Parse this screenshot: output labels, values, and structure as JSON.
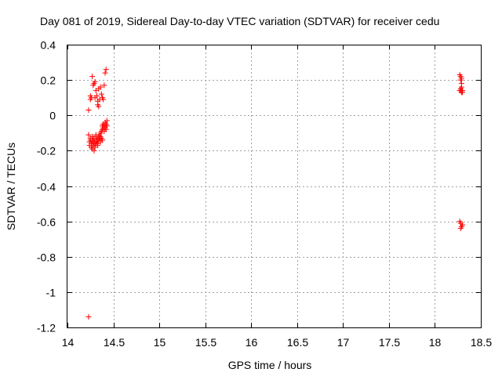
{
  "chart_data": {
    "type": "scatter",
    "title": "Day 081 of 2019, Sidereal Day-to-day VTEC variation (SDTVAR) for receiver cedu",
    "xlabel": "GPS time / hours",
    "ylabel": "SDTVAR / TECUs",
    "xlim": [
      14,
      18.5
    ],
    "ylim": [
      -1.2,
      0.4
    ],
    "x_ticks": [
      14,
      14.5,
      15,
      15.5,
      16,
      16.5,
      17,
      17.5,
      18,
      18.5
    ],
    "x_tick_labels": [
      "14",
      "14.5",
      "15",
      "15.5",
      "16",
      "16.5",
      "17",
      "17.5",
      "18",
      "18.5"
    ],
    "y_ticks": [
      0.4,
      0.2,
      0,
      -0.2,
      -0.4,
      -0.6,
      -0.8,
      -1,
      -1.2
    ],
    "y_tick_labels": [
      "0.4",
      "0.2",
      "0",
      "-0.2",
      "-0.4",
      "-0.6",
      "-0.8",
      "-1",
      "-1.2"
    ],
    "grid": true,
    "marker": "plus",
    "marker_color": "#ff0000",
    "series": [
      {
        "name": "SDTVAR",
        "points": [
          [
            14.23,
            -1.14
          ],
          [
            14.23,
            0.03
          ],
          [
            14.25,
            0.09
          ],
          [
            14.25,
            0.11
          ],
          [
            14.26,
            0.1
          ],
          [
            14.27,
            0.22
          ],
          [
            14.28,
            0.17
          ],
          [
            14.29,
            0.18
          ],
          [
            14.3,
            0.19
          ],
          [
            14.31,
            0.14
          ],
          [
            14.32,
            0.11
          ],
          [
            14.33,
            0.08
          ],
          [
            14.33,
            0.06
          ],
          [
            14.34,
            0.05
          ],
          [
            14.35,
            0.09
          ],
          [
            14.36,
            0.16
          ],
          [
            14.37,
            0.12
          ],
          [
            14.38,
            0.1
          ],
          [
            14.39,
            0.09
          ],
          [
            14.4,
            0.17
          ],
          [
            14.41,
            0.24
          ],
          [
            14.42,
            0.26
          ],
          [
            14.34,
            0.15
          ],
          [
            14.3,
            0.1
          ],
          [
            14.23,
            -0.11
          ],
          [
            14.24,
            -0.15
          ],
          [
            14.24,
            -0.17
          ],
          [
            14.25,
            -0.13
          ],
          [
            14.26,
            -0.16
          ],
          [
            14.26,
            -0.18
          ],
          [
            14.27,
            -0.12
          ],
          [
            14.27,
            -0.19
          ],
          [
            14.28,
            -0.14
          ],
          [
            14.28,
            -0.17
          ],
          [
            14.29,
            -0.13
          ],
          [
            14.29,
            -0.16
          ],
          [
            14.3,
            -0.15
          ],
          [
            14.3,
            -0.18
          ],
          [
            14.31,
            -0.12
          ],
          [
            14.31,
            -0.16
          ],
          [
            14.32,
            -0.14
          ],
          [
            14.32,
            -0.15
          ],
          [
            14.33,
            -0.13
          ],
          [
            14.33,
            -0.17
          ],
          [
            14.34,
            -0.12
          ],
          [
            14.34,
            -0.14
          ],
          [
            14.35,
            -0.11
          ],
          [
            14.35,
            -0.13
          ],
          [
            14.36,
            -0.1
          ],
          [
            14.36,
            -0.12
          ],
          [
            14.37,
            -0.09
          ],
          [
            14.37,
            -0.13
          ],
          [
            14.38,
            -0.06
          ],
          [
            14.38,
            -0.08
          ],
          [
            14.39,
            -0.05
          ],
          [
            14.39,
            -0.07
          ],
          [
            14.4,
            -0.06
          ],
          [
            14.4,
            -0.09
          ],
          [
            14.41,
            -0.04
          ],
          [
            14.41,
            -0.07
          ],
          [
            14.42,
            -0.05
          ],
          [
            14.42,
            -0.08
          ],
          [
            14.43,
            -0.03
          ],
          [
            14.43,
            -0.06
          ],
          [
            14.38,
            -0.14
          ],
          [
            14.36,
            -0.15
          ],
          [
            14.33,
            -0.16
          ],
          [
            14.29,
            -0.2
          ],
          [
            14.27,
            -0.15
          ],
          [
            14.25,
            -0.14
          ],
          [
            14.31,
            -0.11
          ],
          [
            18.27,
            0.23
          ],
          [
            18.28,
            0.22
          ],
          [
            18.28,
            0.2
          ],
          [
            18.29,
            0.21
          ],
          [
            18.29,
            0.18
          ],
          [
            18.28,
            0.15
          ],
          [
            18.28,
            0.14
          ],
          [
            18.29,
            0.13
          ],
          [
            18.3,
            0.14
          ],
          [
            18.3,
            0.13
          ],
          [
            18.27,
            0.14
          ],
          [
            18.29,
            0.16
          ],
          [
            18.27,
            -0.6
          ],
          [
            18.28,
            -0.61
          ],
          [
            18.28,
            -0.64
          ],
          [
            18.29,
            -0.63
          ],
          [
            18.3,
            -0.62
          ]
        ]
      }
    ]
  }
}
